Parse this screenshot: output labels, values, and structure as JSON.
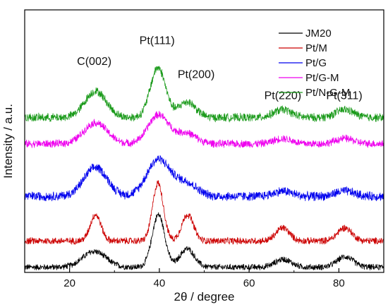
{
  "chart_data": {
    "type": "line",
    "xlabel": "2θ / degree",
    "ylabel": "Intensity / a.u.",
    "xlim": [
      10,
      90
    ],
    "ylim": [
      0,
      100
    ],
    "y_ticks_shown": false,
    "x_ticks": [
      20,
      40,
      60,
      80
    ],
    "x_tick_labels": [
      "20",
      "40",
      "60",
      "80"
    ],
    "grid": false,
    "legend_position": "top-right",
    "series": [
      {
        "name": "JM20",
        "color": "#000000",
        "baseline": 2,
        "noise": 0.8,
        "peaks": [
          {
            "x": 25.5,
            "height": 6,
            "width": 2.6
          },
          {
            "x": 39.8,
            "height": 20,
            "width": 1.4
          },
          {
            "x": 46.2,
            "height": 7,
            "width": 1.6
          },
          {
            "x": 67.6,
            "height": 3,
            "width": 1.8
          },
          {
            "x": 81.4,
            "height": 4,
            "width": 1.8
          }
        ]
      },
      {
        "name": "Pt/M",
        "color": "#cc0000",
        "baseline": 12,
        "noise": 0.9,
        "peaks": [
          {
            "x": 25.8,
            "height": 10,
            "width": 1.2
          },
          {
            "x": 39.7,
            "height": 22,
            "width": 1.2
          },
          {
            "x": 46.3,
            "height": 10,
            "width": 1.3
          },
          {
            "x": 67.5,
            "height": 5,
            "width": 1.5
          },
          {
            "x": 81.3,
            "height": 5,
            "width": 1.6
          }
        ]
      },
      {
        "name": "Pt/G",
        "color": "#0000ee",
        "baseline": 29,
        "noise": 1.2,
        "peaks": [
          {
            "x": 25.8,
            "height": 11,
            "width": 2.6
          },
          {
            "x": 39.8,
            "height": 14,
            "width": 2.6
          },
          {
            "x": 46.0,
            "height": 5,
            "width": 2.4
          },
          {
            "x": 67.5,
            "height": 2,
            "width": 2.0
          },
          {
            "x": 81.3,
            "height": 2,
            "width": 2.0
          }
        ]
      },
      {
        "name": "Pt/G-M",
        "color": "#ee00ee",
        "baseline": 49,
        "noise": 1.0,
        "peaks": [
          {
            "x": 25.8,
            "height": 8,
            "width": 2.6
          },
          {
            "x": 39.8,
            "height": 11,
            "width": 2.3
          },
          {
            "x": 46.0,
            "height": 4,
            "width": 2.2
          },
          {
            "x": 67.5,
            "height": 2,
            "width": 2.0
          },
          {
            "x": 81.3,
            "height": 2,
            "width": 2.0
          }
        ]
      },
      {
        "name": "Pt/N-G-M",
        "color": "#1a9a1a",
        "baseline": 59,
        "noise": 1.1,
        "peaks": [
          {
            "x": 25.8,
            "height": 10,
            "width": 2.4
          },
          {
            "x": 39.7,
            "height": 19,
            "width": 1.7
          },
          {
            "x": 46.2,
            "height": 6,
            "width": 1.9
          },
          {
            "x": 67.5,
            "height": 3,
            "width": 2.0
          },
          {
            "x": 81.3,
            "height": 3,
            "width": 2.0
          }
        ]
      }
    ],
    "annotations": [
      {
        "text": "C(002)",
        "x": 25.5,
        "y": 79
      },
      {
        "text": "Pt(111)",
        "x": 39.5,
        "y": 87
      },
      {
        "text": "Pt(200)",
        "x": 48.2,
        "y": 74
      },
      {
        "text": "Pt(220)",
        "x": 67.5,
        "y": 66
      },
      {
        "text": "Pt(311)",
        "x": 81.2,
        "y": 66
      }
    ]
  }
}
